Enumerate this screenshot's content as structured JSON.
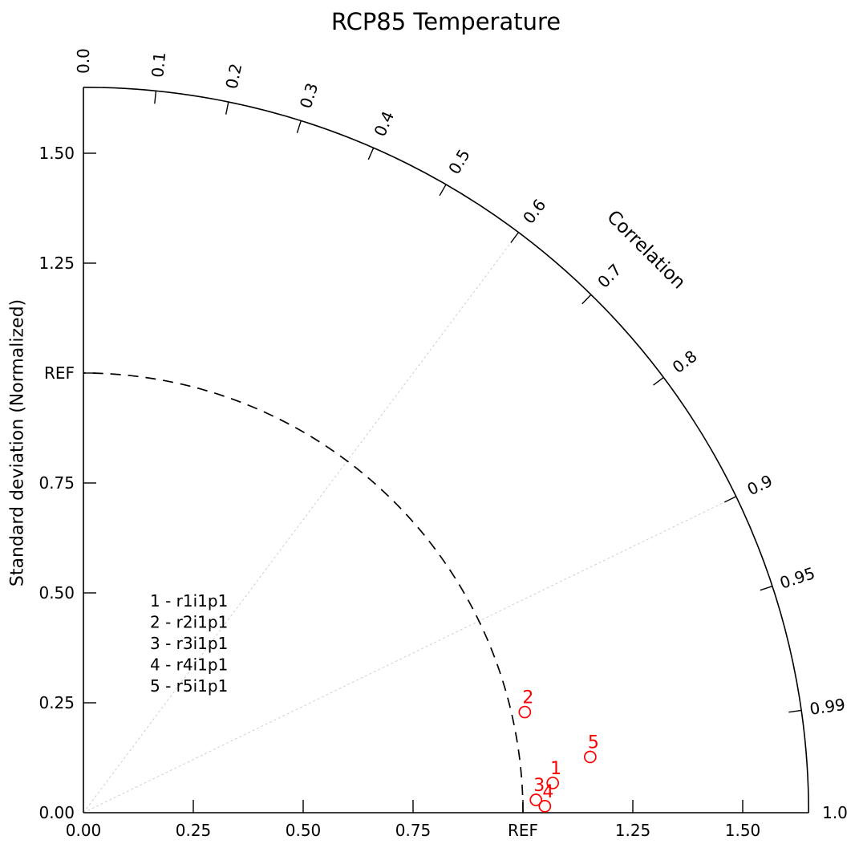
{
  "title": "RCP85 Temperature",
  "axes": {
    "radial_label": "Standard deviation (Normalized)",
    "angular_label": "Correlation"
  },
  "chart_data": {
    "type": "scatter",
    "variant": "taylor-diagram",
    "title": "RCP85 Temperature",
    "radial_label": "Standard deviation (Normalized)",
    "angular_label": "Correlation",
    "std_max": 1.65,
    "ref_std": 1.0,
    "std_ticks": [
      {
        "value": 0.0,
        "label": "0.00"
      },
      {
        "value": 0.25,
        "label": "0.25"
      },
      {
        "value": 0.5,
        "label": "0.50"
      },
      {
        "value": 0.75,
        "label": "0.75"
      },
      {
        "value": 1.0,
        "label": "REF"
      },
      {
        "value": 1.25,
        "label": "1.25"
      },
      {
        "value": 1.5,
        "label": "1.50"
      }
    ],
    "corr_ticks": [
      {
        "value": 0.0,
        "label": "0.0"
      },
      {
        "value": 0.1,
        "label": "0.1"
      },
      {
        "value": 0.2,
        "label": "0.2"
      },
      {
        "value": 0.3,
        "label": "0.3"
      },
      {
        "value": 0.4,
        "label": "0.4"
      },
      {
        "value": 0.5,
        "label": "0.5"
      },
      {
        "value": 0.6,
        "label": "0.6"
      },
      {
        "value": 0.7,
        "label": "0.7"
      },
      {
        "value": 0.8,
        "label": "0.8"
      },
      {
        "value": 0.9,
        "label": "0.9"
      },
      {
        "value": 0.95,
        "label": "0.95"
      },
      {
        "value": 0.99,
        "label": "0.99"
      },
      {
        "value": 1.0,
        "label": "1.0"
      }
    ],
    "corr_gridlines": [
      0.6,
      0.9
    ],
    "series": [
      {
        "marker": "1",
        "run": "r1i1p1",
        "std": 1.07,
        "corr": 0.998
      },
      {
        "marker": "2",
        "run": "r2i1p1",
        "std": 1.03,
        "corr": 0.975
      },
      {
        "marker": "3",
        "run": "r3i1p1",
        "std": 1.03,
        "corr": 0.9996
      },
      {
        "marker": "4",
        "run": "r4i1p1",
        "std": 1.05,
        "corr": 0.9999
      },
      {
        "marker": "5",
        "run": "r5i1p1",
        "std": 1.16,
        "corr": 0.994
      }
    ],
    "legend_items": [
      "1 - r1i1p1",
      "2 - r2i1p1",
      "3 - r3i1p1",
      "4 - r4i1p1",
      "5 - r5i1p1"
    ],
    "colors": {
      "marker": "#ff0000",
      "axis": "#000000",
      "ref_arc": "#000000",
      "gridline": "#cccccc"
    }
  }
}
